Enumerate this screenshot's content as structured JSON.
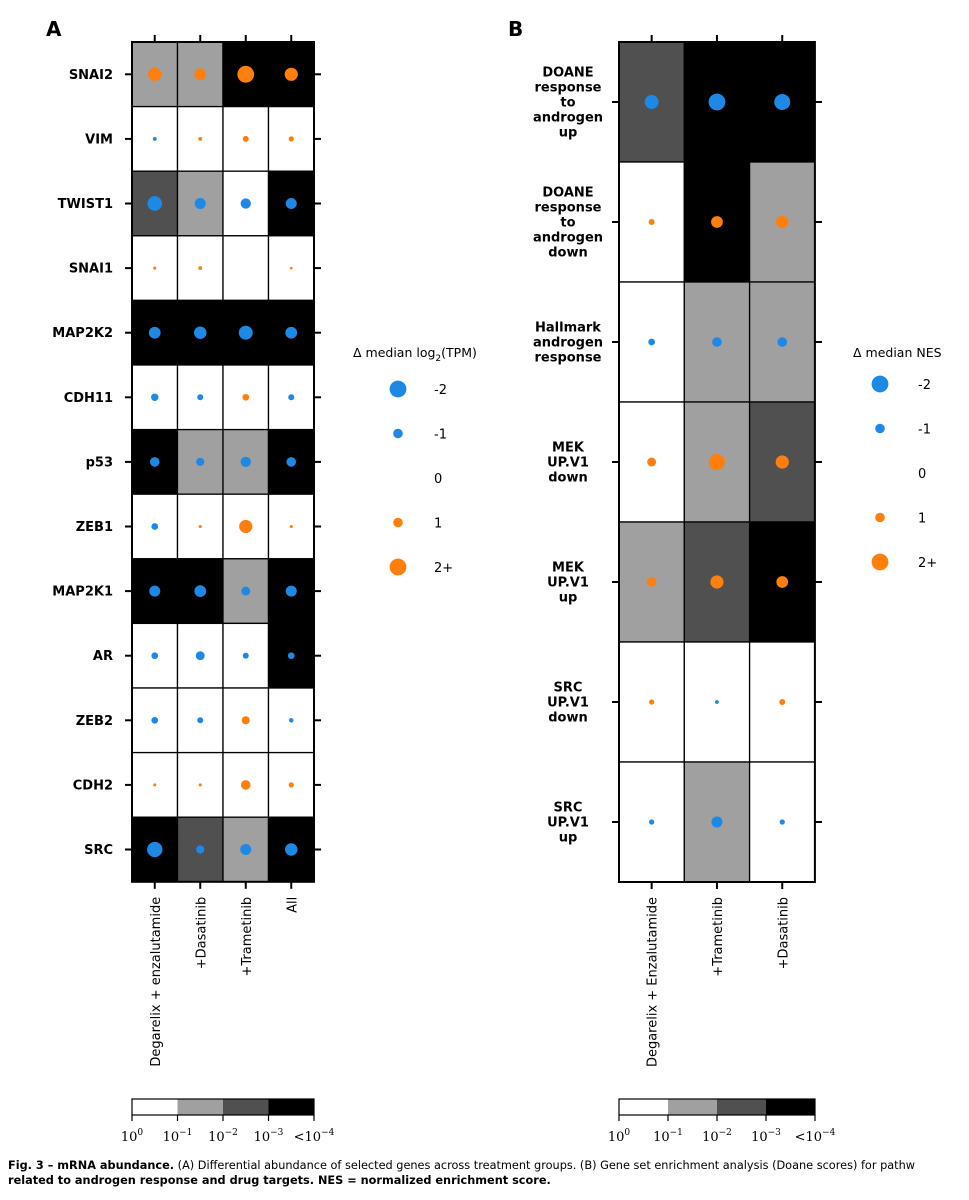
{
  "caption": {
    "lead": "Fig. 3 – mRNA abundance.",
    "line1": " (A) Differential abundance of selected genes across treatment groups. (B) Gene set enrichment analysis (Doane scores) for pathw",
    "line2": "related to androgen response and drug targets. NES = normalized enrichment score."
  },
  "colors": {
    "positive": "#ff7f0e",
    "negative": "#1e88e5",
    "p_bins": [
      "#ffffff",
      "#a0a0a0",
      "#505050",
      "#000000"
    ]
  },
  "colorbar": {
    "ticks": [
      "10^0",
      "10^-1",
      "10^-2",
      "10^-3",
      "<10^-4"
    ]
  },
  "chart_data": [
    {
      "type": "heatmap",
      "panel": "A",
      "title": "",
      "rows": [
        "SNAI2",
        "VIM",
        "TWIST1",
        "SNAI1",
        "MAP2K2",
        "CDH11",
        "p53",
        "ZEB1",
        "MAP2K1",
        "AR",
        "ZEB2",
        "CDH2",
        "SRC"
      ],
      "columns": [
        "Degarelix + enzalutamide",
        "+Dasatinib",
        "+Trametinib",
        "All"
      ],
      "legend": {
        "title": "Δ median log₂(TPM)",
        "labels": [
          "-2",
          "-1",
          "0",
          "1",
          "2+"
        ],
        "values": [
          -2,
          -1,
          0,
          1,
          2
        ]
      },
      "delta": [
        [
          1.5,
          1.3,
          2.0,
          1.5
        ],
        [
          -0.2,
          0.2,
          0.5,
          0.4
        ],
        [
          -1.7,
          -1.2,
          -1.1,
          -1.2
        ],
        [
          0.1,
          0.2,
          0.0,
          0.05
        ],
        [
          -1.3,
          -1.4,
          -1.6,
          -1.3
        ],
        [
          -0.7,
          -0.5,
          0.6,
          -0.5
        ],
        [
          -1.0,
          -0.8,
          -1.1,
          -1.0
        ],
        [
          -0.6,
          0.1,
          1.5,
          0.1
        ],
        [
          -1.2,
          -1.3,
          -0.9,
          -1.2
        ],
        [
          -0.6,
          -0.9,
          -0.5,
          -0.6
        ],
        [
          -0.6,
          -0.5,
          0.8,
          -0.3
        ],
        [
          0.1,
          0.1,
          1.0,
          0.4
        ],
        [
          -1.8,
          -0.8,
          -1.2,
          -1.4
        ]
      ],
      "p_bin": [
        [
          1,
          1,
          3,
          3
        ],
        [
          0,
          0,
          0,
          0
        ],
        [
          2,
          1,
          0,
          3
        ],
        [
          0,
          0,
          0,
          0
        ],
        [
          3,
          3,
          3,
          3
        ],
        [
          0,
          0,
          0,
          0
        ],
        [
          3,
          1,
          1,
          3
        ],
        [
          0,
          0,
          0,
          0
        ],
        [
          3,
          3,
          1,
          3
        ],
        [
          0,
          0,
          0,
          3
        ],
        [
          0,
          0,
          0,
          0
        ],
        [
          0,
          0,
          0,
          0
        ],
        [
          3,
          2,
          1,
          3
        ]
      ],
      "colorbar_range": [
        "10^0",
        "<10^-4"
      ]
    },
    {
      "type": "heatmap",
      "panel": "B",
      "title": "",
      "rows": [
        [
          "DOANE",
          "response",
          "to",
          "androgen",
          "up"
        ],
        [
          "DOANE",
          "response",
          "to",
          "androgen",
          "down"
        ],
        [
          "Hallmark",
          "androgen",
          "response"
        ],
        [
          "MEK",
          "UP.V1",
          "down"
        ],
        [
          "MEK",
          "UP.V1",
          "up"
        ],
        [
          "SRC",
          "UP.V1",
          "down"
        ],
        [
          "SRC",
          "UP.V1",
          "up"
        ]
      ],
      "columns": [
        "Degarelix + Enzalutamide",
        "+Trametinib",
        "+Dasatinib"
      ],
      "legend": {
        "title": "Δ median NES",
        "labels": [
          "-2",
          "-1",
          "0",
          "1",
          "2+"
        ],
        "values": [
          -2,
          -1,
          0,
          1,
          2
        ]
      },
      "delta": [
        [
          -1.6,
          -2.0,
          -1.9
        ],
        [
          0.5,
          1.3,
          1.4
        ],
        [
          -0.6,
          -1.0,
          -1.0
        ],
        [
          0.9,
          1.9,
          1.5
        ],
        [
          1.0,
          1.5,
          1.3
        ],
        [
          0.4,
          -0.2,
          0.5
        ],
        [
          -0.4,
          -1.2,
          -0.4
        ]
      ],
      "p_bin": [
        [
          2,
          3,
          3
        ],
        [
          0,
          3,
          1
        ],
        [
          0,
          1,
          1
        ],
        [
          0,
          1,
          2
        ],
        [
          1,
          2,
          3
        ],
        [
          0,
          0,
          0
        ],
        [
          0,
          1,
          0
        ]
      ],
      "colorbar_range": [
        "10^0",
        "<10^-4"
      ]
    }
  ],
  "panel_labels": [
    "A",
    "B"
  ]
}
